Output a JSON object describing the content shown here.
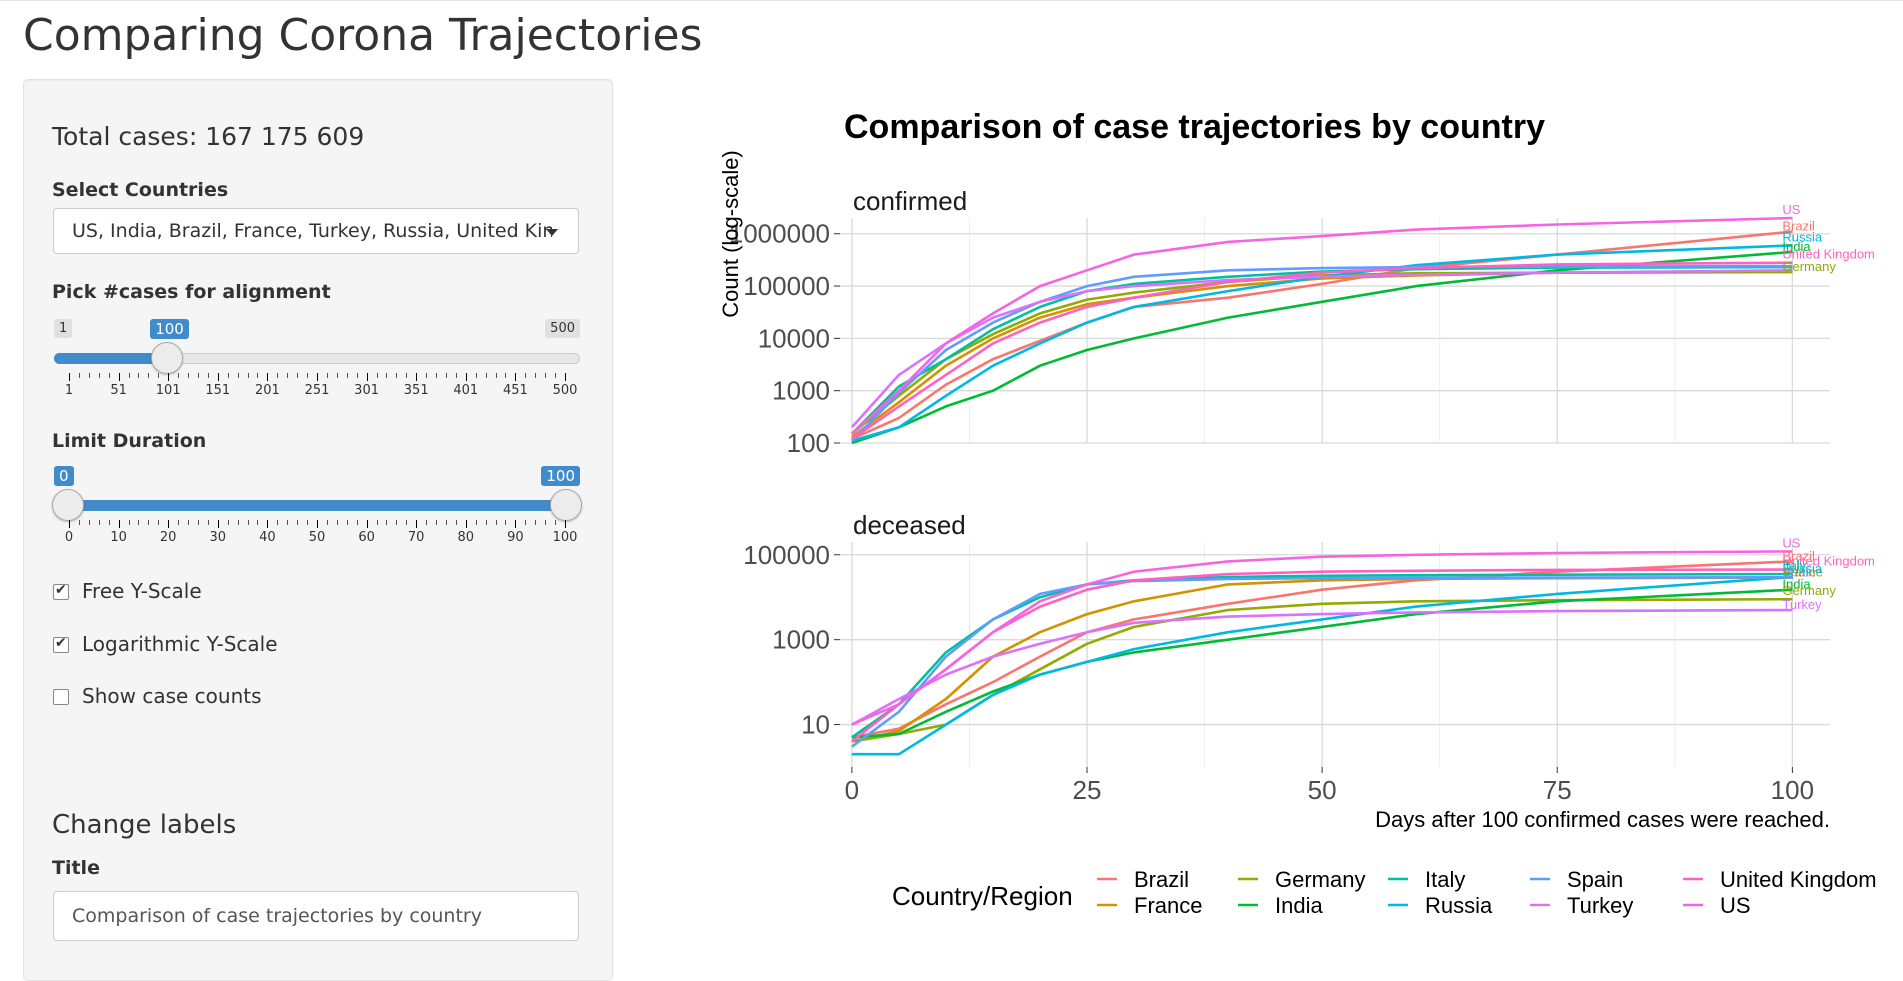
{
  "app_title": "Comparing Corona Trajectories",
  "sidebar": {
    "total_cases": "Total cases: 167 175 609",
    "select_countries": {
      "label": "Select Countries",
      "value": "US, India, Brazil, France, Turkey, Russia, United Kingdom"
    },
    "alignment_slider": {
      "label": "Pick #cases for alignment",
      "min": "1",
      "max": "500",
      "value": "100",
      "value_fraction": 0.198,
      "ticks": [
        "1",
        "51",
        "101",
        "151",
        "201",
        "251",
        "301",
        "351",
        "401",
        "451",
        "500"
      ]
    },
    "duration_slider": {
      "label": "Limit Duration",
      "low": "0",
      "high": "100",
      "range": [
        0,
        100
      ],
      "ticks": [
        "0",
        "10",
        "20",
        "30",
        "40",
        "50",
        "60",
        "70",
        "80",
        "90",
        "100"
      ]
    },
    "checkboxes": [
      {
        "label": "Free Y-Scale",
        "checked": true
      },
      {
        "label": "Logarithmic Y-Scale",
        "checked": true
      },
      {
        "label": "Show case counts",
        "checked": false
      }
    ],
    "change_labels": {
      "heading": "Change labels",
      "title_label": "Title",
      "title_value": "Comparison of case trajectories by country"
    }
  },
  "chart_data": {
    "type": "line",
    "title": "Comparison of case trajectories by country",
    "xlabel": "Days after 100 confirmed cases were reached.",
    "ylabel": "Count (log-scale)",
    "y_scale": "log",
    "xlim": [
      0,
      100
    ],
    "x_ticks": [
      "0",
      "25",
      "50",
      "75",
      "100"
    ],
    "grid": true,
    "legend": {
      "title": "Country/Region",
      "position": "bottom"
    },
    "x": [
      0,
      5,
      10,
      15,
      20,
      25,
      30,
      40,
      50,
      60,
      75,
      100
    ],
    "panels": [
      {
        "name": "confirmed",
        "ylim": [
          100,
          2000000
        ],
        "y_ticks": [
          "100",
          "1000",
          "10000",
          "100000",
          "1000000"
        ],
        "series": [
          {
            "name": "Brazil",
            "color": "#F8766D",
            "values": [
              120,
              300,
              1300,
              4000,
              9000,
              20000,
              40000,
              60000,
              110000,
              220000,
              400000,
              1100000
            ]
          },
          {
            "name": "France",
            "color": "#D39200",
            "values": [
              130,
              600,
              3000,
              10000,
              25000,
              45000,
              60000,
              100000,
              140000,
              160000,
              180000,
              190000
            ]
          },
          {
            "name": "Germany",
            "color": "#93AA00",
            "values": [
              150,
              800,
              4000,
              12000,
              30000,
              55000,
              75000,
              120000,
              160000,
              175000,
              180000,
              185000
            ]
          },
          {
            "name": "India",
            "color": "#00BA38",
            "values": [
              100,
              200,
              500,
              1000,
              3000,
              6000,
              10000,
              25000,
              50000,
              100000,
              200000,
              450000
            ]
          },
          {
            "name": "Italy",
            "color": "#00C19F",
            "values": [
              150,
              1200,
              4000,
              15000,
              40000,
              80000,
              110000,
              150000,
              190000,
              210000,
              225000,
              230000
            ]
          },
          {
            "name": "Russia",
            "color": "#00B9E3",
            "values": [
              110,
              200,
              800,
              3000,
              8000,
              20000,
              40000,
              80000,
              150000,
              250000,
              400000,
              600000
            ]
          },
          {
            "name": "Spain",
            "color": "#619CFF",
            "values": [
              110,
              900,
              6000,
              20000,
              50000,
              100000,
              150000,
              200000,
              220000,
              230000,
              235000,
              240000
            ]
          },
          {
            "name": "Turkey",
            "color": "#DB72FB",
            "values": [
              200,
              2000,
              8000,
              25000,
              50000,
              80000,
              100000,
              130000,
              150000,
              165000,
              180000,
              200000
            ]
          },
          {
            "name": "United Kingdom",
            "color": "#FF61C3",
            "values": [
              120,
              500,
              2000,
              8000,
              20000,
              40000,
              60000,
              120000,
              180000,
              220000,
              260000,
              280000
            ]
          },
          {
            "name": "US",
            "color": "#F564E3",
            "values": [
              150,
              1000,
              8000,
              30000,
              100000,
              200000,
              400000,
              700000,
              900000,
              1200000,
              1500000,
              2000000
            ]
          }
        ],
        "end_labels": [
          "US",
          "Brazil",
          "Russia",
          "India",
          "United Kingdom",
          "Germany"
        ]
      },
      {
        "name": "deceased",
        "ylim": [
          1,
          200000
        ],
        "y_ticks": [
          "10",
          "1000",
          "100000"
        ],
        "series": [
          {
            "name": "Brazil",
            "color": "#F8766D",
            "values": [
              5,
              8,
              30,
              100,
              400,
              1500,
              3000,
              7000,
              15000,
              25000,
              40000,
              70000
            ]
          },
          {
            "name": "France",
            "color": "#D39200",
            "values": [
              4,
              7,
              40,
              400,
              1500,
              4000,
              8000,
              20000,
              25000,
              27000,
              28000,
              29000
            ]
          },
          {
            "name": "Germany",
            "color": "#93AA00",
            "values": [
              4,
              6,
              10,
              50,
              200,
              800,
              2000,
              5000,
              7000,
              8000,
              8500,
              9000
            ]
          },
          {
            "name": "India",
            "color": "#00BA38",
            "values": [
              5,
              6,
              20,
              60,
              150,
              300,
              500,
              1000,
              2000,
              4000,
              8000,
              15000
            ]
          },
          {
            "name": "Italy",
            "color": "#00C19F",
            "values": [
              5,
              30,
              500,
              3000,
              10000,
              20000,
              25000,
              30000,
              32000,
              33000,
              34000,
              35000
            ]
          },
          {
            "name": "Russia",
            "color": "#00B9E3",
            "values": [
              2,
              2,
              10,
              50,
              150,
              300,
              600,
              1500,
              3000,
              6000,
              12000,
              30000
            ]
          },
          {
            "name": "Spain",
            "color": "#619CFF",
            "values": [
              3,
              20,
              400,
              3000,
              12000,
              20000,
              24000,
              27000,
              28000,
              28500,
              29000,
              29500
            ]
          },
          {
            "name": "Turkey",
            "color": "#DB72FB",
            "values": [
              10,
              40,
              150,
              400,
              800,
              1500,
              2500,
              3500,
              4000,
              4400,
              4700,
              5000
            ]
          },
          {
            "name": "United Kingdom",
            "color": "#FF61C3",
            "values": [
              4,
              30,
              200,
              1500,
              6000,
              15000,
              25000,
              35000,
              40000,
              42000,
              44000,
              45000
            ]
          },
          {
            "name": "US",
            "color": "#F564E3",
            "values": [
              10,
              30,
              200,
              1500,
              8000,
              20000,
              40000,
              70000,
              90000,
              100000,
              110000,
              120000
            ]
          }
        ],
        "end_labels": [
          "US",
          "Brazil",
          "United Kingdom",
          "Spain",
          "Italy",
          "France",
          "Russia",
          "India",
          "Germany",
          "Turkey"
        ]
      }
    ]
  }
}
